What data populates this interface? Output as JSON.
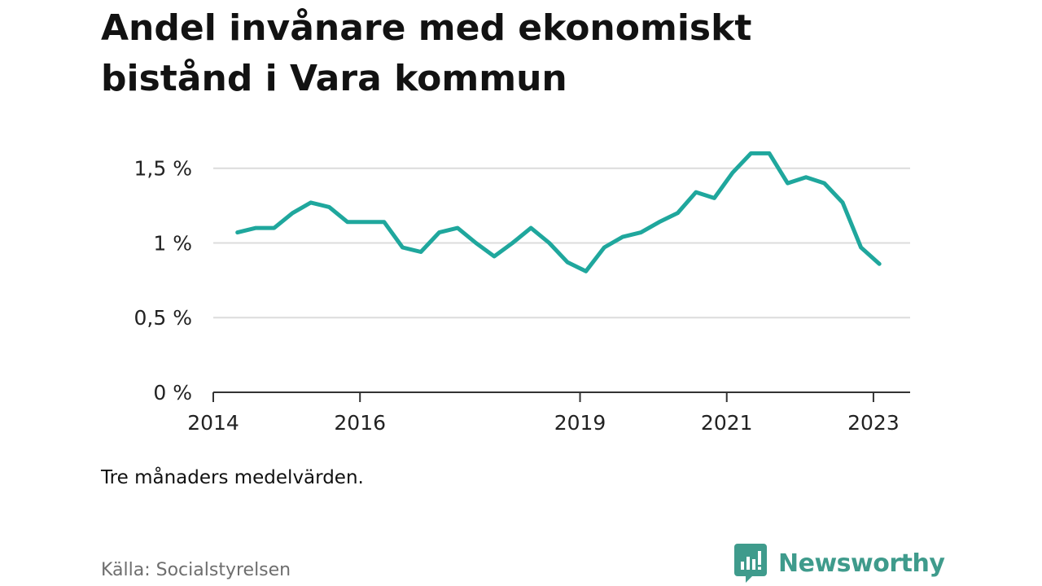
{
  "title": "Andel invånare med ekonomiskt bistånd i Vara kommun",
  "note": "Tre månaders medelvärden.",
  "source": "Källa: Socialstyrelsen",
  "brand": {
    "name": "Newsworthy",
    "icon": "newsworthy-logo-icon",
    "color": "#3f9b8c"
  },
  "chart_data": {
    "type": "line",
    "title": "Andel invånare med ekonomiskt bistånd i Vara kommun",
    "xlabel": "",
    "ylabel": "",
    "x_ticks": [
      {
        "value": 2014,
        "label": "2014"
      },
      {
        "value": 2016,
        "label": "2016"
      },
      {
        "value": 2019,
        "label": "2019"
      },
      {
        "value": 2021,
        "label": "2021"
      },
      {
        "value": 2023,
        "label": "2023"
      }
    ],
    "y_ticks": [
      {
        "value": 0,
        "label": "0 %"
      },
      {
        "value": 0.5,
        "label": "0,5 %"
      },
      {
        "value": 1,
        "label": "1 %"
      },
      {
        "value": 1.5,
        "label": "1,5 %"
      }
    ],
    "xlim": [
      2014.0,
      2023.5
    ],
    "ylim": [
      0,
      1.7
    ],
    "grid": true,
    "line_color": "#1fa79d",
    "series": [
      {
        "values": [
          {
            "x": 2014.33,
            "y": 1.07
          },
          {
            "x": 2014.58,
            "y": 1.1
          },
          {
            "x": 2014.83,
            "y": 1.1
          },
          {
            "x": 2015.08,
            "y": 1.2
          },
          {
            "x": 2015.33,
            "y": 1.27
          },
          {
            "x": 2015.58,
            "y": 1.24
          },
          {
            "x": 2015.83,
            "y": 1.14
          },
          {
            "x": 2016.08,
            "y": 1.14
          },
          {
            "x": 2016.33,
            "y": 1.14
          },
          {
            "x": 2016.58,
            "y": 0.97
          },
          {
            "x": 2016.83,
            "y": 0.94
          },
          {
            "x": 2017.08,
            "y": 1.07
          },
          {
            "x": 2017.33,
            "y": 1.1
          },
          {
            "x": 2017.58,
            "y": 1.0
          },
          {
            "x": 2017.83,
            "y": 0.91
          },
          {
            "x": 2018.08,
            "y": 1.0
          },
          {
            "x": 2018.33,
            "y": 1.1
          },
          {
            "x": 2018.58,
            "y": 1.0
          },
          {
            "x": 2018.83,
            "y": 0.87
          },
          {
            "x": 2019.08,
            "y": 0.81
          },
          {
            "x": 2019.33,
            "y": 0.97
          },
          {
            "x": 2019.58,
            "y": 1.04
          },
          {
            "x": 2019.83,
            "y": 1.07
          },
          {
            "x": 2020.08,
            "y": 1.14
          },
          {
            "x": 2020.33,
            "y": 1.2
          },
          {
            "x": 2020.58,
            "y": 1.34
          },
          {
            "x": 2020.83,
            "y": 1.3
          },
          {
            "x": 2021.08,
            "y": 1.47
          },
          {
            "x": 2021.33,
            "y": 1.6
          },
          {
            "x": 2021.58,
            "y": 1.6
          },
          {
            "x": 2021.83,
            "y": 1.4
          },
          {
            "x": 2022.08,
            "y": 1.44
          },
          {
            "x": 2022.33,
            "y": 1.4
          },
          {
            "x": 2022.58,
            "y": 1.27
          },
          {
            "x": 2022.83,
            "y": 0.97
          },
          {
            "x": 2023.08,
            "y": 0.86
          }
        ]
      }
    ]
  }
}
